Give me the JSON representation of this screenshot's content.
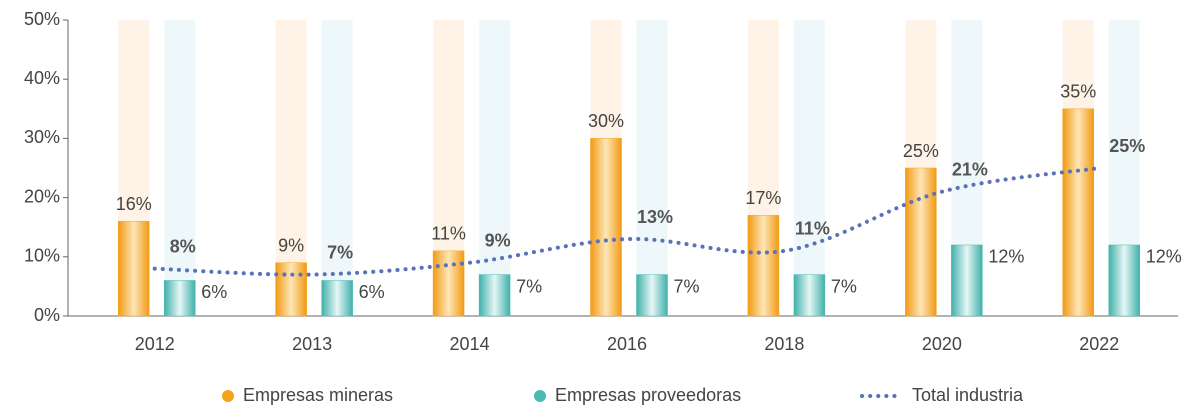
{
  "chart_data": {
    "type": "bar-line",
    "categories": [
      "2012",
      "2013",
      "2014",
      "2016",
      "2018",
      "2020",
      "2022"
    ],
    "series": [
      {
        "name": "Empresas mineras",
        "color": "#f5a31e",
        "type": "bar",
        "values": [
          16,
          9,
          11,
          30,
          17,
          25,
          35
        ],
        "value_labels": [
          "16%",
          "9%",
          "11%",
          "30%",
          "17%",
          "25%",
          "35%"
        ]
      },
      {
        "name": "Empresas proveedoras",
        "color": "#4fbab4",
        "type": "bar",
        "values": [
          6,
          6,
          7,
          7,
          7,
          12,
          12
        ],
        "value_labels": [
          "6%",
          "6%",
          "7%",
          "7%",
          "7%",
          "12%",
          "12%"
        ]
      },
      {
        "name": "Total industria",
        "color": "#5a72b8",
        "type": "line",
        "values": [
          8,
          7,
          9,
          13,
          11,
          21,
          25
        ],
        "value_labels": [
          "8%",
          "7%",
          "9%",
          "13%",
          "11%",
          "21%",
          "25%"
        ]
      }
    ],
    "ylim": [
      0,
      50
    ],
    "yticks": [
      {
        "value": 0,
        "label": "0%"
      },
      {
        "value": 10,
        "label": "10%"
      },
      {
        "value": 20,
        "label": "20%"
      },
      {
        "value": 30,
        "label": "30%"
      },
      {
        "value": 40,
        "label": "40%"
      },
      {
        "value": 50,
        "label": "50%"
      }
    ],
    "legend": "bottom"
  }
}
